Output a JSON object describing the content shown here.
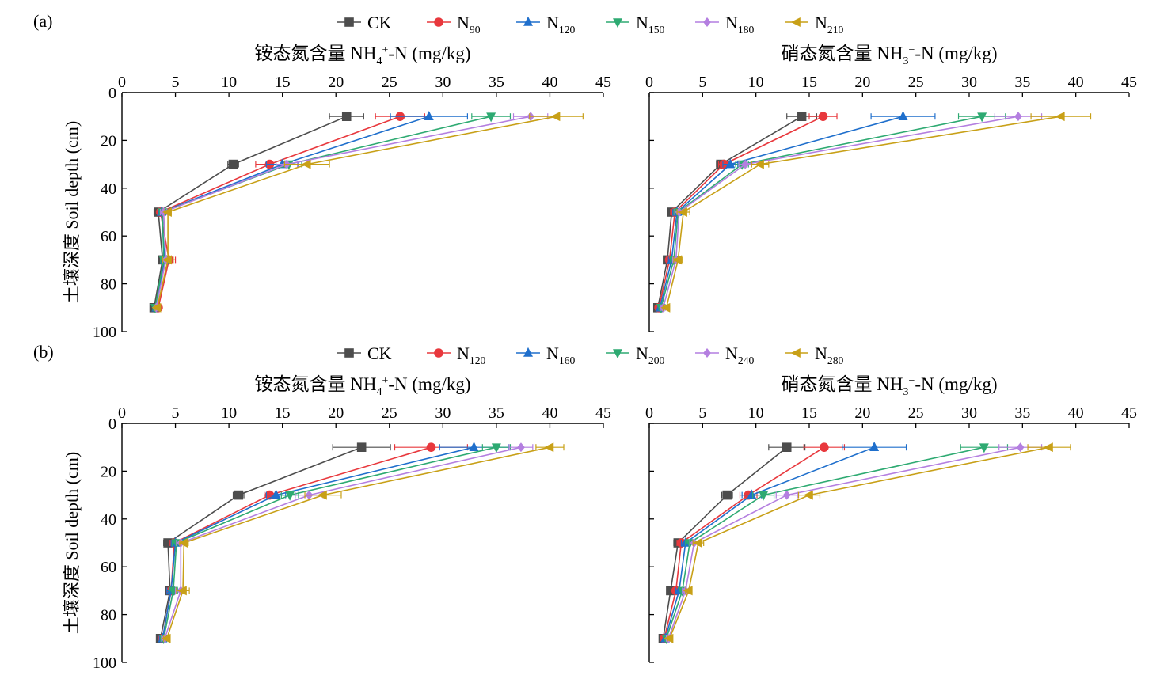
{
  "figure": {
    "panels": [
      {
        "label": "(a)",
        "legend": [
          "CK",
          "N90",
          "N120",
          "N150",
          "N180",
          "N210"
        ]
      },
      {
        "label": "(b)",
        "legend": [
          "CK",
          "N120",
          "N160",
          "N200",
          "N240",
          "N280"
        ]
      }
    ]
  },
  "colors": [
    "#4d4d4d",
    "#e8383d",
    "#1f6fcc",
    "#2eaa72",
    "#b47fe0",
    "#c8a017"
  ],
  "markers": [
    "square",
    "circle",
    "triangle-up",
    "triangle-down",
    "diamond",
    "triangle-left"
  ],
  "chart_data": [
    {
      "type": "line",
      "panel": "(a)",
      "title": "铵态氮含量 NH4+-N (mg/kg)",
      "ylabel": "土壤深度 Soil depth (cm)",
      "xlim": [
        0,
        45
      ],
      "ylim": [
        100,
        0
      ],
      "xticks": [
        0,
        5,
        10,
        15,
        20,
        25,
        30,
        35,
        40,
        45
      ],
      "yticks": [
        0,
        20,
        40,
        60,
        80,
        100
      ],
      "depths": [
        10,
        30,
        50,
        70,
        90
      ],
      "series": [
        {
          "name": "CK",
          "values": [
            21.0,
            10.4,
            3.4,
            3.8,
            3.0
          ],
          "err": [
            1.6,
            0.5,
            0.4,
            0.3,
            0.2
          ]
        },
        {
          "name": "N90",
          "values": [
            26.0,
            13.8,
            3.6,
            4.4,
            3.4
          ],
          "err": [
            2.3,
            1.3,
            0.3,
            0.6,
            0.3
          ]
        },
        {
          "name": "N120",
          "values": [
            28.7,
            15.0,
            3.7,
            4.0,
            3.2
          ],
          "err": [
            3.6,
            1.5,
            0.3,
            0.3,
            0.2
          ]
        },
        {
          "name": "N150",
          "values": [
            34.5,
            15.6,
            3.8,
            3.9,
            3.1
          ],
          "err": [
            1.8,
            1.2,
            0.3,
            0.3,
            0.2
          ]
        },
        {
          "name": "N180",
          "values": [
            38.2,
            15.4,
            3.9,
            4.1,
            3.2
          ],
          "err": [
            1.6,
            1.0,
            0.3,
            0.3,
            0.2
          ]
        },
        {
          "name": "N210",
          "values": [
            40.6,
            17.3,
            4.3,
            4.3,
            3.3
          ],
          "err": [
            2.5,
            2.1,
            0.3,
            0.5,
            0.2
          ]
        }
      ]
    },
    {
      "type": "line",
      "panel": "(a)",
      "title": "硝态氮含量 NH3−-N (mg/kg)",
      "xlim": [
        0,
        45
      ],
      "ylim": [
        100,
        0
      ],
      "xticks": [
        0,
        5,
        10,
        15,
        20,
        25,
        30,
        35,
        40,
        45
      ],
      "yticks": [
        0,
        20,
        40,
        60,
        80,
        100
      ],
      "depths": [
        10,
        30,
        50,
        70,
        90
      ],
      "series": [
        {
          "name": "CK",
          "values": [
            14.3,
            6.7,
            2.1,
            1.7,
            0.8
          ],
          "err": [
            1.4,
            0.4,
            0.4,
            0.3,
            0.2
          ]
        },
        {
          "name": "N90",
          "values": [
            16.3,
            7.0,
            2.4,
            1.9,
            0.9
          ],
          "err": [
            1.3,
            0.5,
            0.4,
            0.3,
            0.2
          ]
        },
        {
          "name": "N120",
          "values": [
            23.8,
            7.6,
            2.6,
            2.1,
            1.0
          ],
          "err": [
            3.0,
            0.7,
            0.4,
            0.3,
            0.2
          ]
        },
        {
          "name": "N150",
          "values": [
            31.2,
            8.7,
            2.7,
            2.3,
            1.1
          ],
          "err": [
            2.2,
            0.6,
            0.4,
            0.3,
            0.2
          ]
        },
        {
          "name": "N180",
          "values": [
            34.6,
            9.0,
            2.8,
            2.5,
            1.3
          ],
          "err": [
            2.2,
            0.6,
            0.4,
            0.3,
            0.2
          ]
        },
        {
          "name": "N210",
          "values": [
            38.6,
            10.4,
            3.2,
            2.7,
            1.6
          ],
          "err": [
            2.8,
            0.8,
            0.6,
            0.4,
            0.3
          ]
        }
      ]
    },
    {
      "type": "line",
      "panel": "(b)",
      "title": "铵态氮含量 NH4+-N (mg/kg)",
      "ylabel": "土壤深度 Soil depth (cm)",
      "xlim": [
        0,
        45
      ],
      "ylim": [
        100,
        0
      ],
      "xticks": [
        0,
        5,
        10,
        15,
        20,
        25,
        30,
        35,
        40,
        45
      ],
      "yticks": [
        0,
        20,
        40,
        60,
        80,
        100
      ],
      "depths": [
        10,
        30,
        50,
        70,
        90
      ],
      "series": [
        {
          "name": "CK",
          "values": [
            22.4,
            10.9,
            4.3,
            4.5,
            3.6
          ],
          "err": [
            2.7,
            0.5,
            0.4,
            0.4,
            0.3
          ]
        },
        {
          "name": "N120",
          "values": [
            28.9,
            13.8,
            4.9,
            4.6,
            3.8
          ],
          "err": [
            3.4,
            0.5,
            0.4,
            0.4,
            0.3
          ]
        },
        {
          "name": "N160",
          "values": [
            32.9,
            14.4,
            5.0,
            4.6,
            3.8
          ],
          "err": [
            3.2,
            0.9,
            0.4,
            0.4,
            0.3
          ]
        },
        {
          "name": "N200",
          "values": [
            35.0,
            15.7,
            5.1,
            4.8,
            3.9
          ],
          "err": [
            1.3,
            0.8,
            0.4,
            0.4,
            0.3
          ]
        },
        {
          "name": "N240",
          "values": [
            37.3,
            17.5,
            5.5,
            5.5,
            4.0
          ],
          "err": [
            1.1,
            1.3,
            0.4,
            0.5,
            0.3
          ]
        },
        {
          "name": "N280",
          "values": [
            40.0,
            18.8,
            5.8,
            5.7,
            4.2
          ],
          "err": [
            1.3,
            1.7,
            0.4,
            0.6,
            0.3
          ]
        }
      ]
    },
    {
      "type": "line",
      "panel": "(b)",
      "title": "硝态氮含量 NH3−-N (mg/kg)",
      "xlim": [
        0,
        45
      ],
      "ylim": [
        100,
        0
      ],
      "xticks": [
        0,
        5,
        10,
        15,
        20,
        25,
        30,
        35,
        40,
        45
      ],
      "yticks": [
        0,
        20,
        40,
        60,
        80,
        100
      ],
      "depths": [
        10,
        30,
        50,
        70,
        90
      ],
      "series": [
        {
          "name": "CK",
          "values": [
            12.9,
            7.3,
            2.7,
            2.0,
            1.3
          ],
          "err": [
            1.7,
            0.5,
            0.4,
            0.3,
            0.2
          ]
        },
        {
          "name": "N120",
          "values": [
            16.4,
            9.3,
            3.0,
            2.5,
            1.4
          ],
          "err": [
            1.9,
            0.8,
            0.4,
            0.3,
            0.2
          ]
        },
        {
          "name": "N160",
          "values": [
            21.1,
            9.6,
            3.4,
            2.8,
            1.5
          ],
          "err": [
            3.0,
            0.9,
            0.4,
            0.3,
            0.2
          ]
        },
        {
          "name": "N200",
          "values": [
            31.4,
            10.7,
            3.8,
            3.1,
            1.6
          ],
          "err": [
            2.2,
            1.0,
            0.4,
            0.3,
            0.2
          ]
        },
        {
          "name": "N240",
          "values": [
            34.8,
            12.9,
            4.2,
            3.4,
            1.8
          ],
          "err": [
            2.0,
            1.0,
            0.4,
            0.3,
            0.2
          ]
        },
        {
          "name": "N280",
          "values": [
            37.5,
            15.0,
            4.6,
            3.7,
            1.9
          ],
          "err": [
            2.0,
            1.0,
            0.5,
            0.3,
            0.2
          ]
        }
      ]
    }
  ]
}
